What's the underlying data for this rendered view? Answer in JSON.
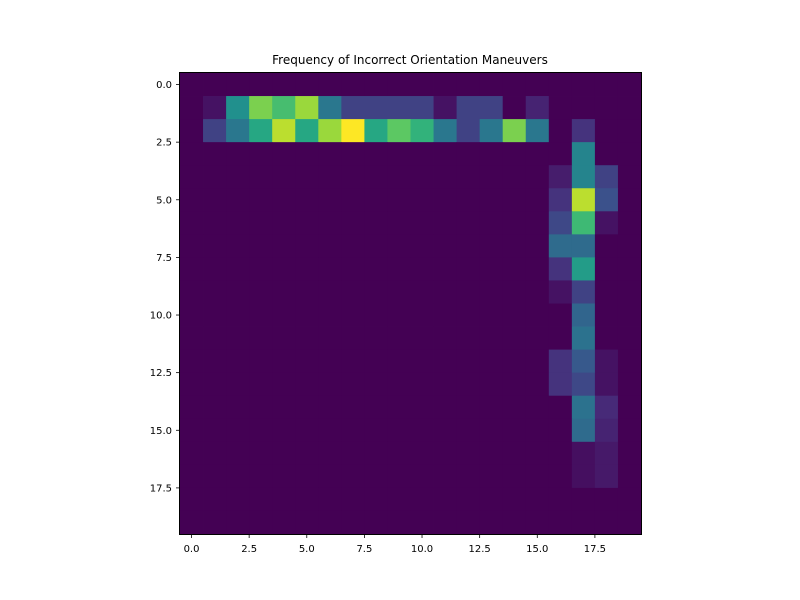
{
  "chart_data": {
    "type": "heatmap",
    "title": "Frequency of Incorrect Orientation Maneuvers",
    "xlabel": "",
    "ylabel": "",
    "xlim": [
      -0.5,
      19.5
    ],
    "ylim": [
      19.5,
      -0.5
    ],
    "x_ticks": [
      0.0,
      2.5,
      5.0,
      7.5,
      10.0,
      12.5,
      15.0,
      17.5
    ],
    "x_tick_labels": [
      "0.0",
      "2.5",
      "5.0",
      "7.5",
      "10.0",
      "12.5",
      "15.0",
      "17.5"
    ],
    "y_ticks": [
      0.0,
      2.5,
      5.0,
      7.5,
      10.0,
      12.5,
      15.0,
      17.5
    ],
    "y_tick_labels": [
      "0.0",
      "2.5",
      "5.0",
      "7.5",
      "10.0",
      "12.5",
      "15.0",
      "17.5"
    ],
    "colormap": "viridis",
    "vmin": 0,
    "vmax": 10,
    "grid": false,
    "values": [
      [
        0,
        0,
        0,
        0,
        0,
        0,
        0,
        0,
        0,
        0,
        0,
        0,
        0,
        0,
        0,
        0,
        0,
        0,
        0,
        0
      ],
      [
        0,
        0.5,
        5,
        8,
        7,
        8.5,
        4,
        2,
        2,
        2,
        2,
        0.5,
        2,
        2,
        0,
        1,
        0,
        0,
        0,
        0
      ],
      [
        0,
        2,
        4,
        6,
        9,
        6,
        8.5,
        10,
        6,
        7.5,
        6.5,
        4,
        2,
        4,
        8,
        4,
        0,
        1.5,
        0,
        0
      ],
      [
        0,
        0,
        0,
        0,
        0,
        0,
        0,
        0,
        0,
        0,
        0,
        0,
        0,
        0,
        0,
        0,
        0,
        4.5,
        0,
        0
      ],
      [
        0,
        0,
        0,
        0,
        0,
        0,
        0,
        0,
        0,
        0,
        0,
        0,
        0,
        0,
        0,
        0,
        0.8,
        4.5,
        2,
        0
      ],
      [
        0,
        0,
        0,
        0,
        0,
        0,
        0,
        0,
        0,
        0,
        0,
        0,
        0,
        0,
        0,
        0,
        1.5,
        9,
        2.5,
        0
      ],
      [
        0,
        0,
        0,
        0,
        0,
        0,
        0,
        0,
        0,
        0,
        0,
        0,
        0,
        0,
        0,
        0,
        2.2,
        6.8,
        0.5,
        0
      ],
      [
        0,
        0,
        0,
        0,
        0,
        0,
        0,
        0,
        0,
        0,
        0,
        0,
        0,
        0,
        0,
        0,
        3.5,
        3.5,
        0,
        0
      ],
      [
        0,
        0,
        0,
        0,
        0,
        0,
        0,
        0,
        0,
        0,
        0,
        0,
        0,
        0,
        0,
        0,
        1.5,
        5.5,
        0,
        0
      ],
      [
        0,
        0,
        0,
        0,
        0,
        0,
        0,
        0,
        0,
        0,
        0,
        0,
        0,
        0,
        0,
        0,
        0.5,
        2,
        0,
        0
      ],
      [
        0,
        0,
        0,
        0,
        0,
        0,
        0,
        0,
        0,
        0,
        0,
        0,
        0,
        0,
        0,
        0,
        0,
        3.3,
        0,
        0
      ],
      [
        0,
        0,
        0,
        0,
        0,
        0,
        0,
        0,
        0,
        0,
        0,
        0,
        0,
        0,
        0,
        0,
        0,
        3.8,
        0,
        0
      ],
      [
        0,
        0,
        0,
        0,
        0,
        0,
        0,
        0,
        0,
        0,
        0,
        0,
        0,
        0,
        0,
        0,
        1.5,
        2.8,
        0.5,
        0
      ],
      [
        0,
        0,
        0,
        0,
        0,
        0,
        0,
        0,
        0,
        0,
        0,
        0,
        0,
        0,
        0,
        0,
        1.5,
        2.2,
        0.5,
        0
      ],
      [
        0,
        0,
        0,
        0,
        0,
        0,
        0,
        0,
        0,
        0,
        0,
        0,
        0,
        0,
        0,
        0,
        0,
        3.8,
        1.2,
        0
      ],
      [
        0,
        0,
        0,
        0,
        0,
        0,
        0,
        0,
        0,
        0,
        0,
        0,
        0,
        0,
        0,
        0,
        0,
        3.5,
        1,
        0
      ],
      [
        0,
        0,
        0,
        0,
        0,
        0,
        0,
        0,
        0,
        0,
        0,
        0,
        0,
        0,
        0,
        0,
        0,
        0.4,
        0.7,
        0
      ],
      [
        0,
        0,
        0,
        0,
        0,
        0,
        0,
        0,
        0,
        0,
        0,
        0,
        0,
        0,
        0,
        0,
        0,
        0.4,
        0.7,
        0
      ],
      [
        0,
        0,
        0,
        0,
        0,
        0,
        0,
        0,
        0,
        0,
        0,
        0,
        0,
        0,
        0,
        0,
        0,
        0,
        0,
        0
      ],
      [
        0,
        0,
        0,
        0,
        0,
        0,
        0,
        0,
        0,
        0,
        0,
        0,
        0,
        0,
        0,
        0,
        0,
        0,
        0,
        0
      ]
    ]
  }
}
